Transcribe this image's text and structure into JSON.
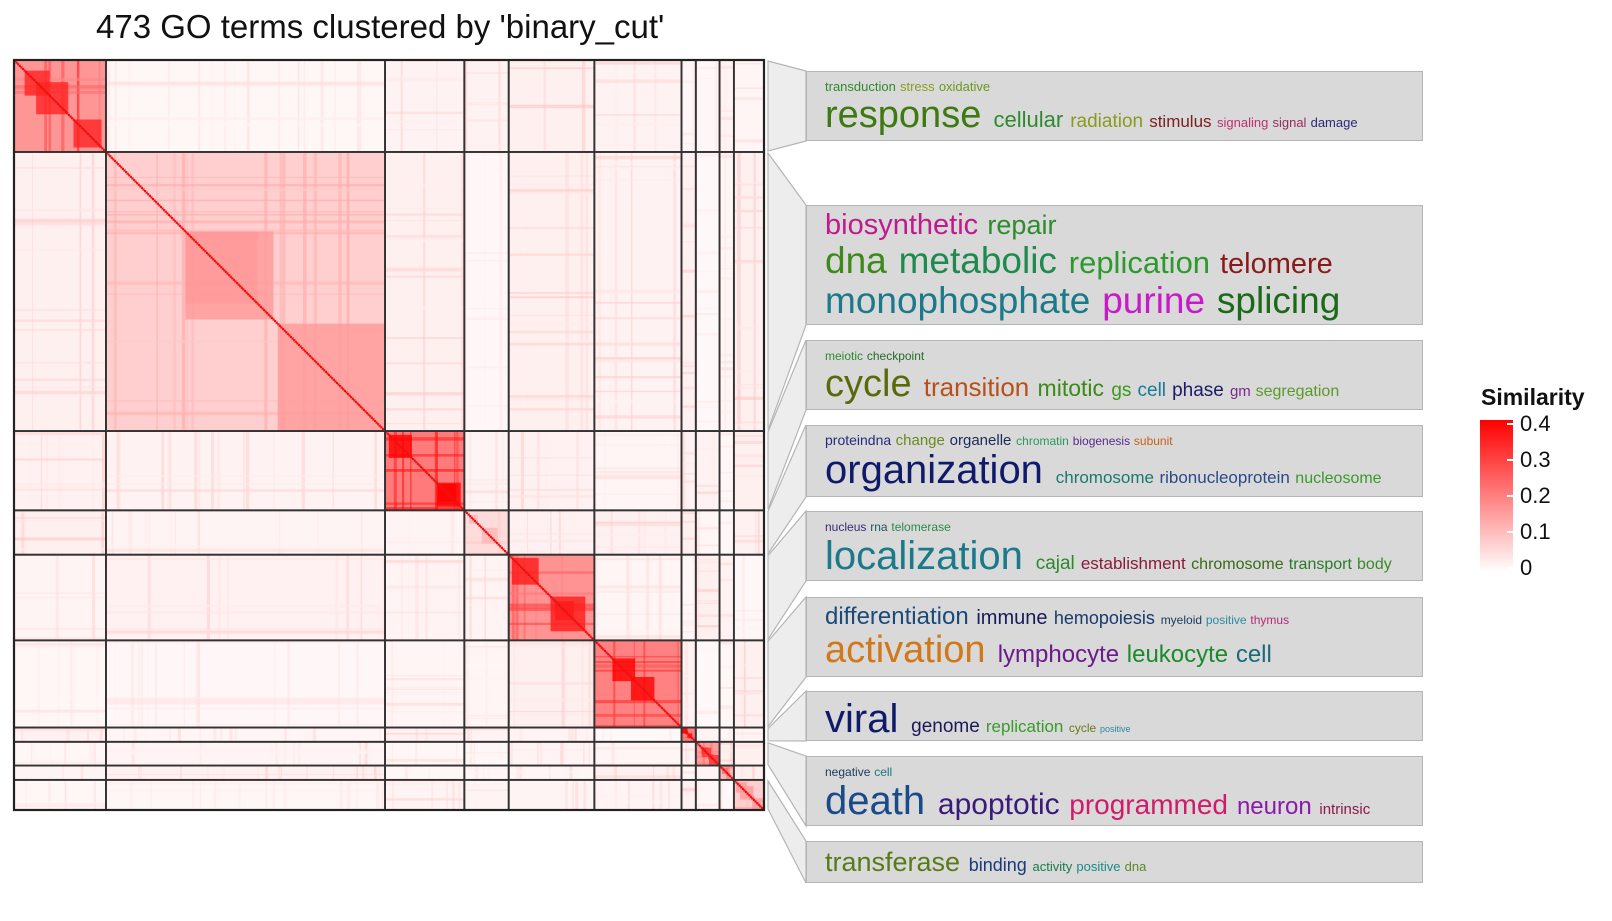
{
  "chart_data": {
    "type": "heatmap",
    "title": "473 GO terms clustered by 'binary_cut'",
    "n_terms": 473,
    "clusters": [
      {
        "size": 58
      },
      {
        "size": 176
      },
      {
        "size": 50
      },
      {
        "size": 28
      },
      {
        "size": 54
      },
      {
        "size": 55
      },
      {
        "size": 9
      },
      {
        "size": 15
      },
      {
        "size": 9
      },
      {
        "size": 19
      }
    ],
    "legend": {
      "title": "Similarity",
      "min": 0,
      "max": 0.4,
      "ticks": [
        "0.4",
        "0.3",
        "0.2",
        "0.1",
        "0"
      ],
      "tick_values": [
        0.4,
        0.3,
        0.2,
        0.1,
        0
      ],
      "high_color": "#ff0000",
      "low_color": "#ffffff"
    },
    "wordclouds": [
      {
        "lines": [
          [
            {
              "t": "transduction",
              "c": "#2e8b2e",
              "s": 13
            },
            {
              "t": "stress",
              "c": "#8aa01e",
              "s": 13
            },
            {
              "t": "oxidative",
              "c": "#6b9a1e",
              "s": 13
            }
          ],
          [
            {
              "t": "response",
              "c": "#3d7a12",
              "s": 38
            },
            {
              "t": "cellular",
              "c": "#2f8a2f",
              "s": 22
            },
            {
              "t": "radiation",
              "c": "#8a9a1e",
              "s": 19
            },
            {
              "t": "stimulus",
              "c": "#7a2020",
              "s": 17
            },
            {
              "t": "signaling",
              "c": "#c0306e",
              "s": 13
            },
            {
              "t": "signal",
              "c": "#9a2a5a",
              "s": 13
            },
            {
              "t": "damage",
              "c": "#2a2a7a",
              "s": 13
            }
          ]
        ]
      },
      {
        "lines": [
          [
            {
              "t": "biosynthetic",
              "c": "#c01a8e",
              "s": 29
            },
            {
              "t": "repair",
              "c": "#2e8b2e",
              "s": 27
            }
          ],
          [
            {
              "t": "dna",
              "c": "#3d8a1a",
              "s": 37
            },
            {
              "t": "metabolic",
              "c": "#1e8a4e",
              "s": 37
            },
            {
              "t": "replication",
              "c": "#2e9a2e",
              "s": 31
            },
            {
              "t": "telomere",
              "c": "#8a1a1a",
              "s": 29
            }
          ],
          [
            {
              "t": "monophosphate",
              "c": "#1a7a8a",
              "s": 37
            },
            {
              "t": "purine",
              "c": "#c81ac8",
              "s": 37
            },
            {
              "t": "splicing",
              "c": "#1a6a1a",
              "s": 37
            }
          ]
        ]
      },
      {
        "lines": [
          [
            {
              "t": "meiotic",
              "c": "#2e8b2e",
              "s": 12
            },
            {
              "t": "checkpoint",
              "c": "#2a6a2a",
              "s": 12
            }
          ],
          [
            {
              "t": "cycle",
              "c": "#5a6a0a",
              "s": 38
            },
            {
              "t": "transition",
              "c": "#b8501a",
              "s": 26
            },
            {
              "t": "mitotic",
              "c": "#3a8a1a",
              "s": 23
            },
            {
              "t": "gs",
              "c": "#3a9a1a",
              "s": 19
            },
            {
              "t": "cell",
              "c": "#1a7a9a",
              "s": 19
            },
            {
              "t": "phase",
              "c": "#1a1a6a",
              "s": 19
            },
            {
              "t": "gm",
              "c": "#7a2a8a",
              "s": 15
            },
            {
              "t": "segregation",
              "c": "#5a9a2a",
              "s": 16
            }
          ]
        ]
      },
      {
        "lines": [
          [
            {
              "t": "proteindna",
              "c": "#2a2a7a",
              "s": 14
            },
            {
              "t": "change",
              "c": "#6a8a1a",
              "s": 15
            },
            {
              "t": "organelle",
              "c": "#1a2a5a",
              "s": 15
            },
            {
              "t": "chromatin",
              "c": "#2a9a5a",
              "s": 12
            },
            {
              "t": "biogenesis",
              "c": "#5a2a8a",
              "s": 12
            },
            {
              "t": "subunit",
              "c": "#c8601a",
              "s": 12
            }
          ],
          [
            {
              "t": "organization",
              "c": "#101a6a",
              "s": 40
            },
            {
              "t": "chromosome",
              "c": "#1a7a6a",
              "s": 17
            },
            {
              "t": "ribonucleoprotein",
              "c": "#2a4a8a",
              "s": 17
            },
            {
              "t": "nucleosome",
              "c": "#3a9a2a",
              "s": 16
            }
          ]
        ]
      },
      {
        "lines": [
          [
            {
              "t": "nucleus",
              "c": "#3a2a7a",
              "s": 12
            },
            {
              "t": "rna",
              "c": "#1a5a5a",
              "s": 12
            },
            {
              "t": "telomerase",
              "c": "#2a8a4a",
              "s": 12
            }
          ],
          [
            {
              "t": "localization",
              "c": "#1a7a8a",
              "s": 40
            },
            {
              "t": "cajal",
              "c": "#2a8a2a",
              "s": 19
            },
            {
              "t": "establishment",
              "c": "#8a1a3a",
              "s": 17
            },
            {
              "t": "chromosome",
              "c": "#3a6a1a",
              "s": 16
            },
            {
              "t": "transport",
              "c": "#2a7a2a",
              "s": 16
            },
            {
              "t": "body",
              "c": "#3a8a2a",
              "s": 16
            }
          ]
        ]
      },
      {
        "lines": [
          [
            {
              "t": "differentiation",
              "c": "#1a4a7a",
              "s": 24
            },
            {
              "t": "immune",
              "c": "#1a1a5a",
              "s": 20
            },
            {
              "t": "hemopoiesis",
              "c": "#1a3a6a",
              "s": 18
            },
            {
              "t": "myeloid",
              "c": "#1a3a5a",
              "s": 12
            },
            {
              "t": "positive",
              "c": "#2a8aa0",
              "s": 12
            },
            {
              "t": "thymus",
              "c": "#b02a7a",
              "s": 12
            }
          ],
          [
            {
              "t": "activation",
              "c": "#d0781a",
              "s": 38
            },
            {
              "t": "lymphocyte",
              "c": "#6a1a8a",
              "s": 24
            },
            {
              "t": "leukocyte",
              "c": "#1a8a2a",
              "s": 24
            },
            {
              "t": "cell",
              "c": "#1a6a7a",
              "s": 24
            }
          ]
        ]
      },
      {
        "lines": [
          [
            {
              "t": "viral",
              "c": "#101a6a",
              "s": 40
            },
            {
              "t": "genome",
              "c": "#1a1a5a",
              "s": 19
            },
            {
              "t": "replication",
              "c": "#3a9a2a",
              "s": 17
            },
            {
              "t": "cycle",
              "c": "#6a7a1a",
              "s": 12
            },
            {
              "t": "positive",
              "c": "#2a8aa0",
              "s": 9
            }
          ]
        ]
      },
      {
        "lines": [
          [
            {
              "t": "negative",
              "c": "#1a3a5a",
              "s": 12
            },
            {
              "t": "cell",
              "c": "#1a7a7a",
              "s": 12
            }
          ],
          [
            {
              "t": "death",
              "c": "#1a4a8a",
              "s": 40
            },
            {
              "t": "apoptotic",
              "c": "#3a1a7a",
              "s": 30
            },
            {
              "t": "programmed",
              "c": "#d01a6a",
              "s": 28
            },
            {
              "t": "neuron",
              "c": "#8a1aaa",
              "s": 24
            },
            {
              "t": "intrinsic",
              "c": "#8a1a4a",
              "s": 15
            }
          ]
        ]
      },
      {
        "lines": [
          [
            {
              "t": "transferase",
              "c": "#5a7a1a",
              "s": 27
            },
            {
              "t": "binding",
              "c": "#1a3a7a",
              "s": 18
            },
            {
              "t": "activity",
              "c": "#1a7a4a",
              "s": 13
            },
            {
              "t": "positive",
              "c": "#1a8a8a",
              "s": 13
            },
            {
              "t": "dna",
              "c": "#5a8a2a",
              "s": 13
            }
          ]
        ]
      }
    ]
  }
}
